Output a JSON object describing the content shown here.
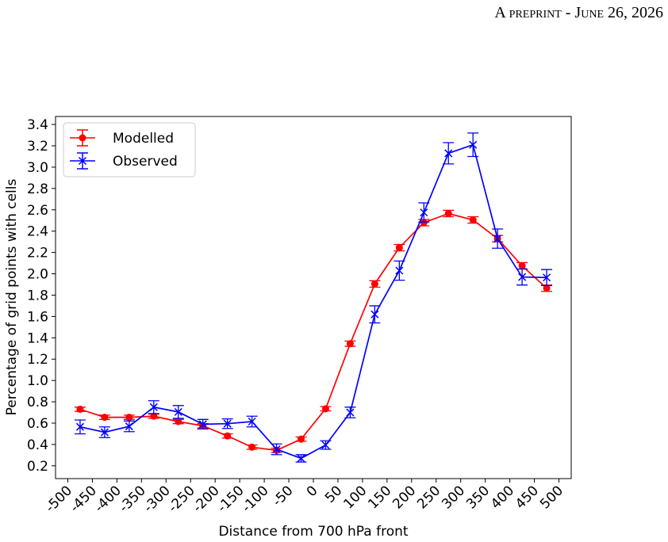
{
  "header": {
    "text": "A preprint - June 26, 2026"
  },
  "chart_data": {
    "type": "line",
    "xlabel": "Distance from 700 hPa front",
    "ylabel": "Percentage of grid points with cells",
    "x": [
      -475,
      -425,
      -375,
      -325,
      -275,
      -225,
      -175,
      -125,
      -75,
      -25,
      25,
      75,
      125,
      175,
      225,
      275,
      325,
      375,
      425,
      475
    ],
    "series": [
      {
        "name": "Modelled",
        "color": "#ff0000",
        "marker": "circle",
        "values": [
          0.73,
          0.655,
          0.655,
          0.665,
          0.615,
          0.575,
          0.48,
          0.375,
          0.345,
          0.45,
          0.735,
          1.345,
          1.905,
          2.245,
          2.48,
          2.565,
          2.505,
          2.33,
          2.075,
          1.865
        ],
        "errors": [
          0.02,
          0.02,
          0.02,
          0.02,
          0.02,
          0.02,
          0.02,
          0.02,
          0.02,
          0.02,
          0.02,
          0.025,
          0.03,
          0.03,
          0.03,
          0.03,
          0.03,
          0.03,
          0.03,
          0.03
        ]
      },
      {
        "name": "Observed",
        "color": "#0000ff",
        "marker": "x",
        "values": [
          0.565,
          0.515,
          0.57,
          0.75,
          0.705,
          0.59,
          0.595,
          0.615,
          0.355,
          0.27,
          0.395,
          0.7,
          1.62,
          2.03,
          2.575,
          3.13,
          3.21,
          2.33,
          1.97,
          1.965
        ],
        "errors": [
          0.065,
          0.05,
          0.05,
          0.06,
          0.06,
          0.045,
          0.045,
          0.05,
          0.05,
          0.035,
          0.04,
          0.05,
          0.08,
          0.09,
          0.09,
          0.1,
          0.11,
          0.09,
          0.075,
          0.075
        ]
      }
    ],
    "xlim": [
      -525,
      525
    ],
    "xticks": [
      -500,
      -450,
      -400,
      -350,
      -300,
      -250,
      -200,
      -150,
      -100,
      -50,
      0,
      50,
      100,
      150,
      200,
      250,
      300,
      350,
      400,
      450,
      500
    ],
    "ylim": [
      0.08,
      3.475
    ],
    "yticks": [
      0.2,
      0.4,
      0.6,
      0.8,
      {
        "value": 1,
        "label": "1.0"
      },
      1.2,
      1.4,
      1.6,
      1.8,
      {
        "value": 2,
        "label": "2.0"
      },
      2.2,
      2.4,
      2.6,
      2.8,
      {
        "value": 3,
        "label": "3.0"
      },
      3.2,
      3.4
    ],
    "legend": "upper left",
    "grid": false
  }
}
